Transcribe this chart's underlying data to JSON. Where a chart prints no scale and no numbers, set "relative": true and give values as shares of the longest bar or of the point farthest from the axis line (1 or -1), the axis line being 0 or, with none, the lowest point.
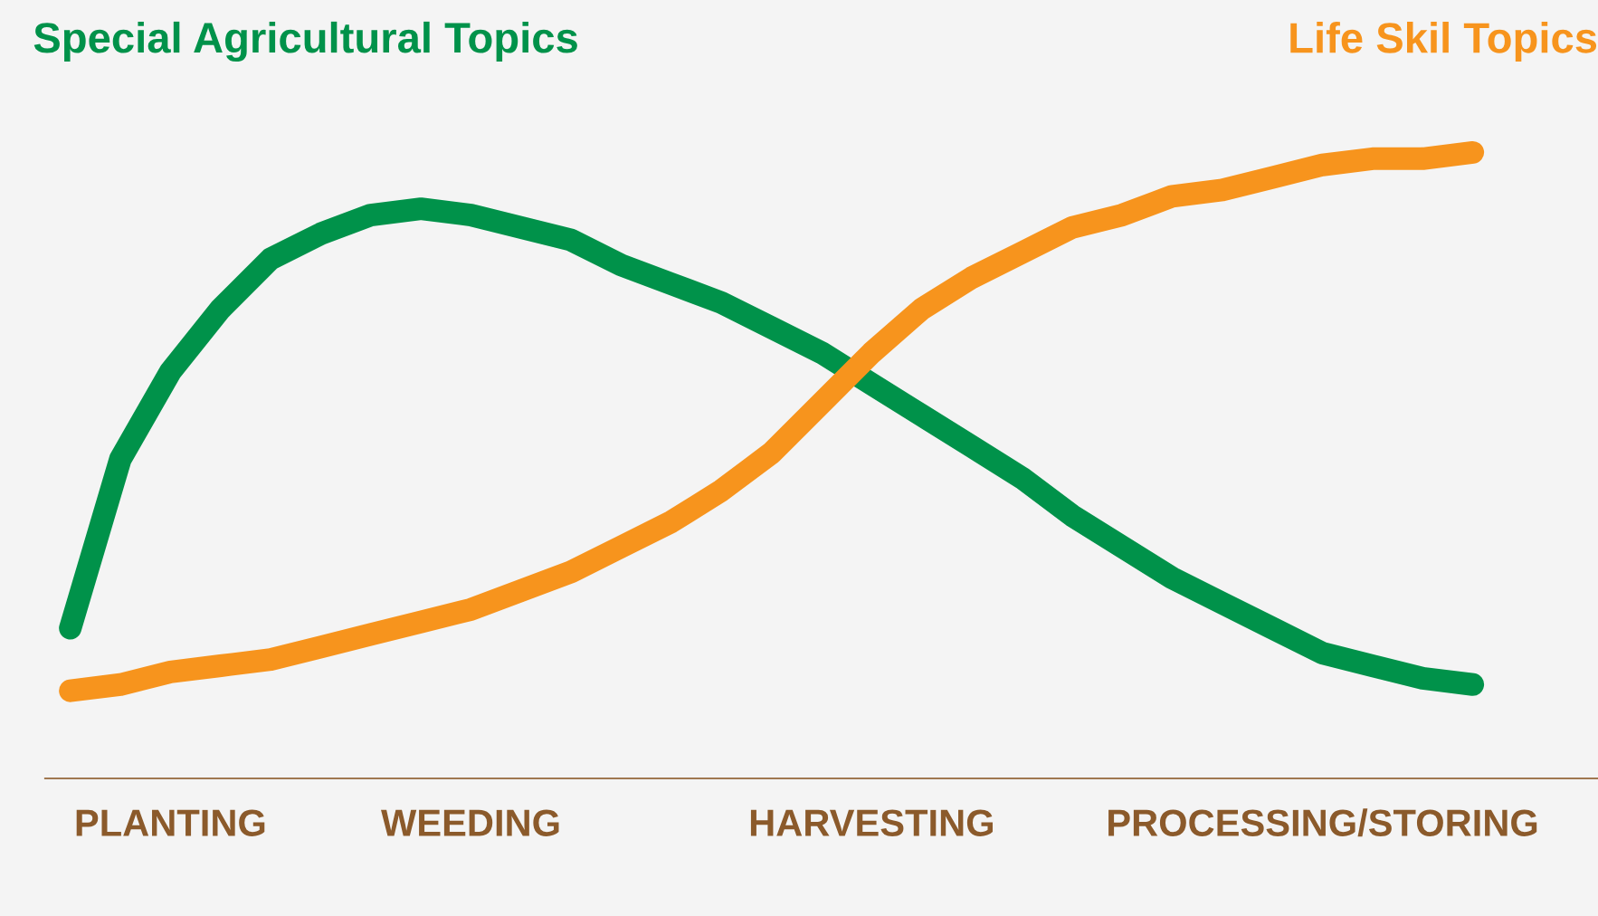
{
  "chart_data": {
    "type": "line",
    "relative": true,
    "categories": [
      null,
      null,
      "PLANTING",
      null,
      null,
      null,
      null,
      null,
      "WEEDING",
      null,
      null,
      null,
      null,
      null,
      null,
      null,
      "HARVESTING",
      null,
      null,
      null,
      null,
      null,
      null,
      null,
      null,
      "PROCESSING/STORING",
      null,
      null,
      null,
      null,
      null
    ],
    "tick_labels": "x",
    "marker": "none",
    "line_style": "solid",
    "series": [
      {
        "name": "Special Agricultural Topics",
        "color": "#00924a",
        "values": [
          0.24,
          0.51,
          0.65,
          0.75,
          0.83,
          0.87,
          0.9,
          0.91,
          0.9,
          0.88,
          0.86,
          0.82,
          0.79,
          0.76,
          0.72,
          0.68,
          0.63,
          0.58,
          0.53,
          0.48,
          0.42,
          0.37,
          0.32,
          0.28,
          0.24,
          0.2,
          0.18,
          0.16,
          0.15,
          null,
          null
        ]
      },
      {
        "name": "Life Skil Topics",
        "color": "#f7941d",
        "values": [
          0.14,
          0.15,
          0.17,
          0.18,
          0.19,
          0.21,
          0.23,
          0.25,
          0.27,
          0.3,
          0.33,
          0.37,
          0.41,
          0.46,
          0.52,
          0.6,
          0.68,
          0.75,
          0.8,
          0.84,
          0.88,
          0.9,
          0.93,
          0.94,
          0.96,
          0.98,
          0.99,
          0.99,
          1,
          null,
          null
        ]
      }
    ]
  }
}
